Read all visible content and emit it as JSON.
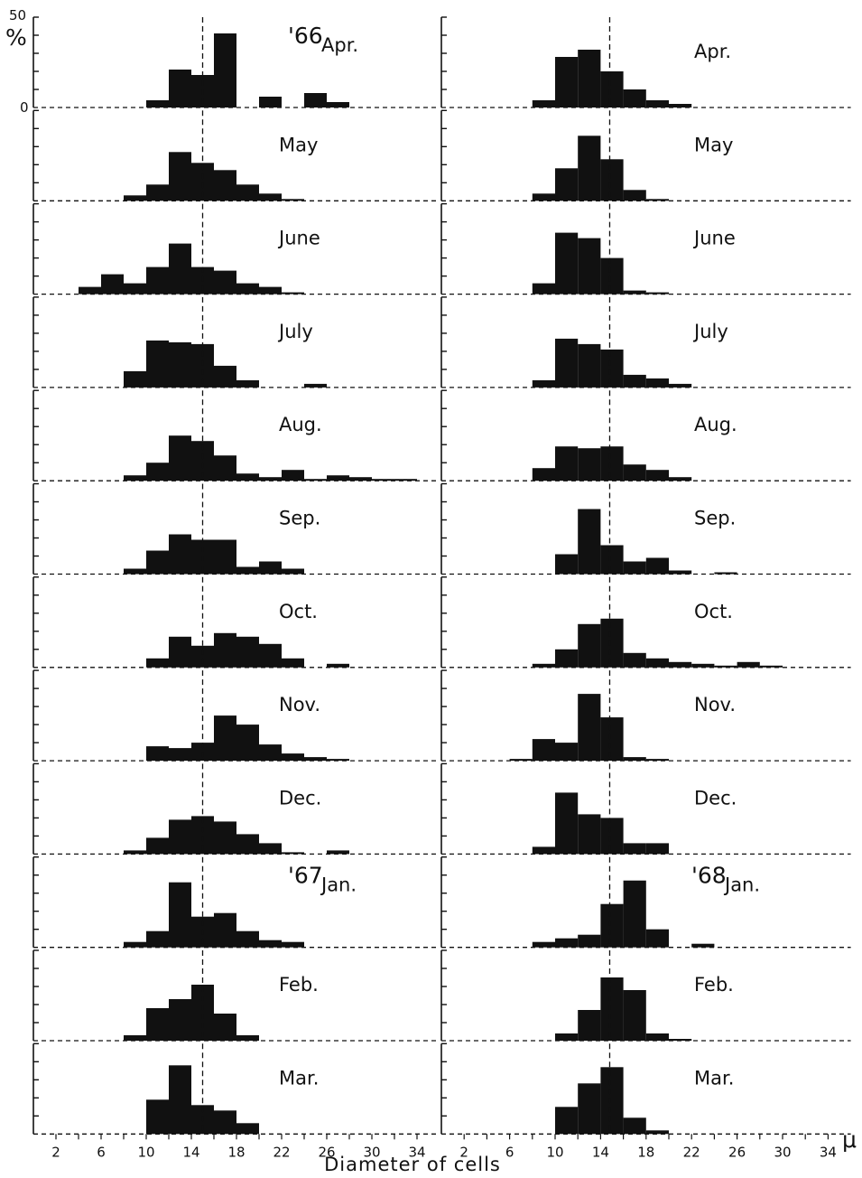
{
  "figure": {
    "y_axis_max_label": "50",
    "y_axis_zero_label": "0",
    "y_axis_unit": "%",
    "x_axis_title": "Diameter of cells",
    "x_axis_unit": "μ",
    "x_tick_labels": [
      "2",
      "6",
      "10",
      "14",
      "18",
      "22",
      "26",
      "30",
      "34"
    ]
  },
  "chart_data": [
    {
      "type": "bar",
      "title": "'66 Apr.",
      "year": "'66",
      "month": "Apr.",
      "bin_width": 2,
      "xlim": [
        0,
        36
      ],
      "ylim": [
        0,
        50
      ],
      "xlabel": "Diameter of cells",
      "ylabel": "%",
      "mean_line": 15,
      "bins": [
        [
          10,
          4
        ],
        [
          12,
          21
        ],
        [
          14,
          18
        ],
        [
          16,
          41
        ],
        [
          20,
          6
        ],
        [
          24,
          8
        ],
        [
          26,
          3
        ]
      ]
    },
    {
      "type": "bar",
      "title": "Apr.",
      "year": "",
      "month": "Apr.",
      "bin_width": 2,
      "xlim": [
        0,
        36
      ],
      "ylim": [
        0,
        50
      ],
      "mean_line": 14.8,
      "bins": [
        [
          8,
          4
        ],
        [
          10,
          28
        ],
        [
          12,
          32
        ],
        [
          14,
          20
        ],
        [
          16,
          10
        ],
        [
          18,
          4
        ],
        [
          20,
          2
        ]
      ]
    },
    {
      "type": "bar",
      "title": "May",
      "year": "",
      "month": "May",
      "bin_width": 2,
      "xlim": [
        0,
        36
      ],
      "ylim": [
        0,
        50
      ],
      "mean_line": 15,
      "bins": [
        [
          8,
          3
        ],
        [
          10,
          9
        ],
        [
          12,
          27
        ],
        [
          14,
          21
        ],
        [
          16,
          17
        ],
        [
          18,
          9
        ],
        [
          20,
          4
        ],
        [
          22,
          1
        ]
      ]
    },
    {
      "type": "bar",
      "title": "May",
      "year": "",
      "month": "May",
      "bin_width": 2,
      "xlim": [
        0,
        36
      ],
      "ylim": [
        0,
        50
      ],
      "mean_line": 14.8,
      "bins": [
        [
          8,
          4
        ],
        [
          10,
          18
        ],
        [
          12,
          36
        ],
        [
          14,
          23
        ],
        [
          16,
          6
        ],
        [
          18,
          1
        ]
      ]
    },
    {
      "type": "bar",
      "title": "June",
      "year": "",
      "month": "June",
      "bin_width": 2,
      "xlim": [
        0,
        36
      ],
      "ylim": [
        0,
        50
      ],
      "mean_line": 15,
      "bins": [
        [
          4,
          4
        ],
        [
          6,
          11
        ],
        [
          8,
          6
        ],
        [
          10,
          15
        ],
        [
          12,
          28
        ],
        [
          14,
          15
        ],
        [
          16,
          13
        ],
        [
          18,
          6
        ],
        [
          20,
          4
        ],
        [
          22,
          1
        ]
      ]
    },
    {
      "type": "bar",
      "title": "June",
      "year": "",
      "month": "June",
      "bin_width": 2,
      "xlim": [
        0,
        36
      ],
      "ylim": [
        0,
        50
      ],
      "mean_line": 14.8,
      "bins": [
        [
          8,
          6
        ],
        [
          10,
          34
        ],
        [
          12,
          31
        ],
        [
          14,
          20
        ],
        [
          16,
          2
        ],
        [
          18,
          1
        ]
      ]
    },
    {
      "type": "bar",
      "title": "July",
      "year": "",
      "month": "July",
      "bin_width": 2,
      "xlim": [
        0,
        36
      ],
      "ylim": [
        0,
        50
      ],
      "mean_line": 15,
      "bins": [
        [
          8,
          9
        ],
        [
          10,
          26
        ],
        [
          12,
          25
        ],
        [
          14,
          24
        ],
        [
          16,
          12
        ],
        [
          18,
          4
        ],
        [
          24,
          2
        ]
      ]
    },
    {
      "type": "bar",
      "title": "July",
      "year": "",
      "month": "July",
      "bin_width": 2,
      "xlim": [
        0,
        36
      ],
      "ylim": [
        0,
        50
      ],
      "mean_line": 14.8,
      "bins": [
        [
          8,
          4
        ],
        [
          10,
          27
        ],
        [
          12,
          24
        ],
        [
          14,
          21
        ],
        [
          16,
          7
        ],
        [
          18,
          5
        ],
        [
          20,
          2
        ]
      ]
    },
    {
      "type": "bar",
      "title": "Aug.",
      "year": "",
      "month": "Aug.",
      "bin_width": 2,
      "xlim": [
        0,
        36
      ],
      "ylim": [
        0,
        50
      ],
      "mean_line": 15,
      "bins": [
        [
          8,
          3
        ],
        [
          10,
          10
        ],
        [
          12,
          25
        ],
        [
          14,
          22
        ],
        [
          16,
          14
        ],
        [
          18,
          4
        ],
        [
          20,
          2
        ],
        [
          22,
          6
        ],
        [
          24,
          1
        ],
        [
          26,
          3
        ],
        [
          28,
          2
        ],
        [
          30,
          1
        ],
        [
          32,
          1
        ]
      ]
    },
    {
      "type": "bar",
      "title": "Aug.",
      "year": "",
      "month": "Aug.",
      "bin_width": 2,
      "xlim": [
        0,
        36
      ],
      "ylim": [
        0,
        50
      ],
      "mean_line": 14.8,
      "bins": [
        [
          8,
          7
        ],
        [
          10,
          19
        ],
        [
          12,
          18
        ],
        [
          14,
          19
        ],
        [
          16,
          9
        ],
        [
          18,
          6
        ],
        [
          20,
          2
        ]
      ]
    },
    {
      "type": "bar",
      "title": "Sep.",
      "year": "",
      "month": "Sep.",
      "bin_width": 2,
      "xlim": [
        0,
        36
      ],
      "ylim": [
        0,
        50
      ],
      "mean_line": 15,
      "bins": [
        [
          8,
          3
        ],
        [
          10,
          13
        ],
        [
          12,
          22
        ],
        [
          14,
          19
        ],
        [
          16,
          19
        ],
        [
          18,
          4
        ],
        [
          20,
          7
        ],
        [
          22,
          3
        ]
      ]
    },
    {
      "type": "bar",
      "title": "Sep.",
      "year": "",
      "month": "Sep.",
      "bin_width": 2,
      "xlim": [
        0,
        36
      ],
      "ylim": [
        0,
        50
      ],
      "mean_line": 14.8,
      "bins": [
        [
          10,
          11
        ],
        [
          12,
          36
        ],
        [
          14,
          16
        ],
        [
          16,
          7
        ],
        [
          18,
          9
        ],
        [
          20,
          2
        ],
        [
          24,
          1
        ]
      ]
    },
    {
      "type": "bar",
      "title": "Oct.",
      "year": "",
      "month": "Oct.",
      "bin_width": 2,
      "xlim": [
        0,
        36
      ],
      "ylim": [
        0,
        50
      ],
      "mean_line": 15,
      "bins": [
        [
          10,
          5
        ],
        [
          12,
          17
        ],
        [
          14,
          12
        ],
        [
          16,
          19
        ],
        [
          18,
          17
        ],
        [
          20,
          13
        ],
        [
          22,
          5
        ],
        [
          26,
          2
        ]
      ]
    },
    {
      "type": "bar",
      "title": "Oct.",
      "year": "",
      "month": "Oct.",
      "bin_width": 2,
      "xlim": [
        0,
        36
      ],
      "ylim": [
        0,
        50
      ],
      "mean_line": 14.8,
      "bins": [
        [
          8,
          2
        ],
        [
          10,
          10
        ],
        [
          12,
          24
        ],
        [
          14,
          27
        ],
        [
          16,
          8
        ],
        [
          18,
          5
        ],
        [
          20,
          3
        ],
        [
          22,
          2
        ],
        [
          24,
          1
        ],
        [
          26,
          3
        ],
        [
          28,
          1
        ]
      ]
    },
    {
      "type": "bar",
      "title": "Nov.",
      "year": "",
      "month": "Nov.",
      "bin_width": 2,
      "xlim": [
        0,
        36
      ],
      "ylim": [
        0,
        50
      ],
      "mean_line": 15,
      "bins": [
        [
          10,
          8
        ],
        [
          12,
          7
        ],
        [
          14,
          10
        ],
        [
          16,
          25
        ],
        [
          18,
          20
        ],
        [
          20,
          9
        ],
        [
          22,
          4
        ],
        [
          24,
          2
        ],
        [
          26,
          1
        ]
      ]
    },
    {
      "type": "bar",
      "title": "Nov.",
      "year": "",
      "month": "Nov.",
      "bin_width": 2,
      "xlim": [
        0,
        36
      ],
      "ylim": [
        0,
        50
      ],
      "mean_line": 14.8,
      "bins": [
        [
          6,
          1
        ],
        [
          8,
          12
        ],
        [
          10,
          10
        ],
        [
          12,
          37
        ],
        [
          14,
          24
        ],
        [
          16,
          2
        ],
        [
          18,
          1
        ]
      ]
    },
    {
      "type": "bar",
      "title": "Dec.",
      "year": "",
      "month": "Dec.",
      "bin_width": 2,
      "xlim": [
        0,
        36
      ],
      "ylim": [
        0,
        50
      ],
      "mean_line": 15,
      "bins": [
        [
          8,
          2
        ],
        [
          10,
          9
        ],
        [
          12,
          19
        ],
        [
          14,
          21
        ],
        [
          16,
          18
        ],
        [
          18,
          11
        ],
        [
          20,
          6
        ],
        [
          22,
          1
        ],
        [
          26,
          2
        ]
      ]
    },
    {
      "type": "bar",
      "title": "Dec.",
      "year": "",
      "month": "Dec.",
      "bin_width": 2,
      "xlim": [
        0,
        36
      ],
      "ylim": [
        0,
        50
      ],
      "mean_line": 14.8,
      "bins": [
        [
          8,
          4
        ],
        [
          10,
          34
        ],
        [
          12,
          22
        ],
        [
          14,
          20
        ],
        [
          16,
          6
        ],
        [
          18,
          6
        ]
      ]
    },
    {
      "type": "bar",
      "title": "'67 Jan.",
      "year": "'67",
      "month": "Jan.",
      "bin_width": 2,
      "xlim": [
        0,
        36
      ],
      "ylim": [
        0,
        50
      ],
      "mean_line": 15,
      "bins": [
        [
          8,
          3
        ],
        [
          10,
          9
        ],
        [
          12,
          36
        ],
        [
          14,
          17
        ],
        [
          16,
          19
        ],
        [
          18,
          9
        ],
        [
          20,
          4
        ],
        [
          22,
          3
        ]
      ]
    },
    {
      "type": "bar",
      "title": "'68 Jan.",
      "year": "'68",
      "month": "Jan.",
      "bin_width": 2,
      "xlim": [
        0,
        36
      ],
      "ylim": [
        0,
        50
      ],
      "mean_line": 14.8,
      "bins": [
        [
          8,
          3
        ],
        [
          10,
          5
        ],
        [
          12,
          7
        ],
        [
          14,
          24
        ],
        [
          16,
          37
        ],
        [
          18,
          10
        ],
        [
          22,
          2
        ]
      ]
    },
    {
      "type": "bar",
      "title": "Feb.",
      "year": "",
      "month": "Feb.",
      "bin_width": 2,
      "xlim": [
        0,
        36
      ],
      "ylim": [
        0,
        50
      ],
      "mean_line": 15,
      "bins": [
        [
          8,
          3
        ],
        [
          10,
          18
        ],
        [
          12,
          23
        ],
        [
          14,
          31
        ],
        [
          16,
          15
        ],
        [
          18,
          3
        ]
      ]
    },
    {
      "type": "bar",
      "title": "Feb.",
      "year": "",
      "month": "Feb.",
      "bin_width": 2,
      "xlim": [
        0,
        36
      ],
      "ylim": [
        0,
        50
      ],
      "mean_line": 14.8,
      "bins": [
        [
          10,
          4
        ],
        [
          12,
          17
        ],
        [
          14,
          35
        ],
        [
          16,
          28
        ],
        [
          18,
          4
        ],
        [
          20,
          1
        ]
      ]
    },
    {
      "type": "bar",
      "title": "Mar.",
      "year": "",
      "month": "Mar.",
      "bin_width": 2,
      "xlim": [
        0,
        36
      ],
      "ylim": [
        0,
        50
      ],
      "mean_line": 15,
      "bins": [
        [
          10,
          19
        ],
        [
          12,
          38
        ],
        [
          14,
          16
        ],
        [
          16,
          13
        ],
        [
          18,
          6
        ]
      ]
    },
    {
      "type": "bar",
      "title": "Mar.",
      "year": "",
      "month": "Mar.",
      "bin_width": 2,
      "xlim": [
        0,
        36
      ],
      "ylim": [
        0,
        50
      ],
      "mean_line": 14.8,
      "bins": [
        [
          10,
          15
        ],
        [
          12,
          28
        ],
        [
          14,
          37
        ],
        [
          16,
          9
        ],
        [
          18,
          2
        ]
      ]
    }
  ]
}
